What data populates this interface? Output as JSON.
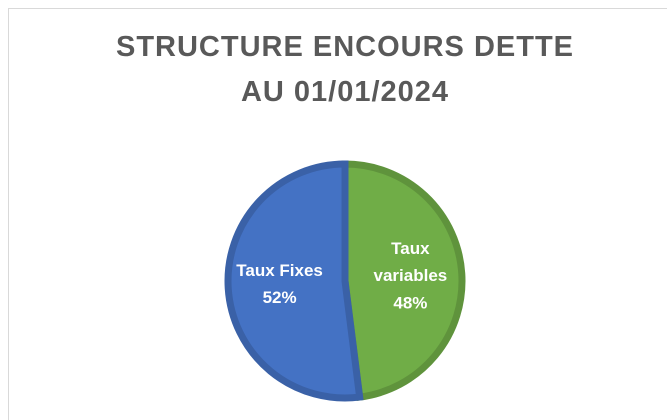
{
  "chart_data": {
    "type": "pie",
    "title": [
      "STRUCTURE ENCOURS DETTE",
      "AU 01/01/2024"
    ],
    "categories": [
      "Taux variables",
      "Taux Fixes"
    ],
    "values": [
      48,
      52
    ],
    "value_labels": [
      "48%",
      "52%"
    ],
    "colors": [
      "#70ad47",
      "#4472c4"
    ]
  }
}
